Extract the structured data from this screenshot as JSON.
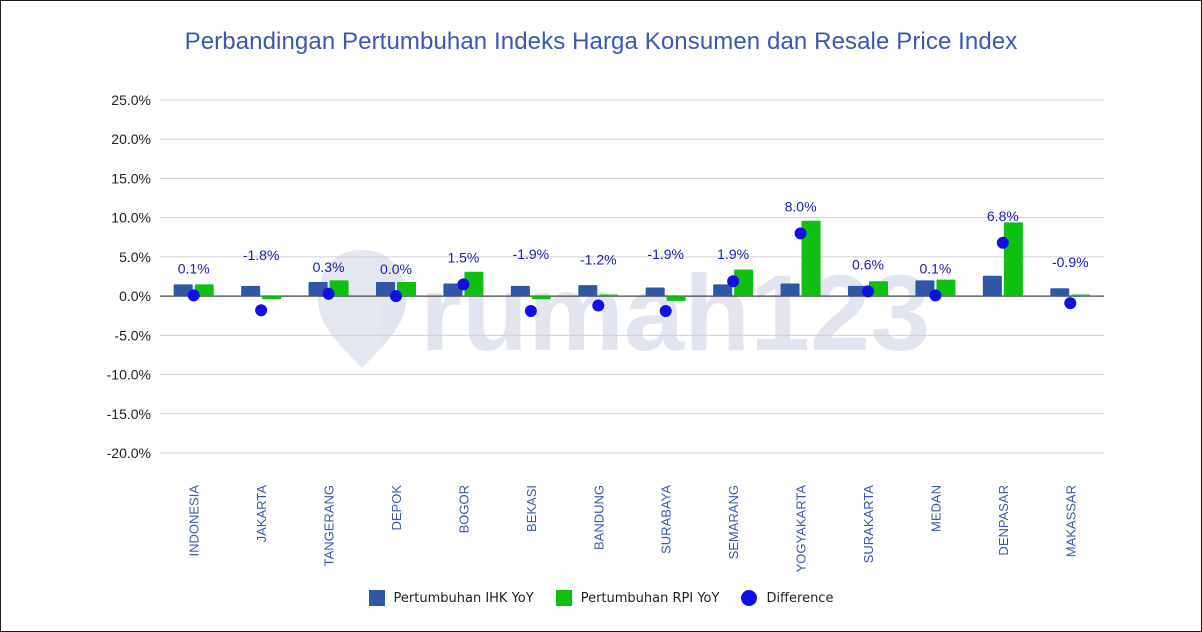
{
  "chart_data": {
    "type": "bar",
    "title": "Perbandingan Pertumbuhan Indeks Harga Konsumen dan Resale Price Index",
    "categories": [
      "INDONESIA",
      "JAKARTA",
      "TANGERANG",
      "DEPOK",
      "BOGOR",
      "BEKASI",
      "BANDUNG",
      "SURABAYA",
      "SEMARANG",
      "YOGYAKARTA",
      "SURAKARTA",
      "MEDAN",
      "DENPASAR",
      "MAKASSAR"
    ],
    "series": [
      {
        "name": "Pertumbuhan IHK YoY",
        "kind": "bar",
        "color": "#3056a8",
        "values": [
          1.5,
          1.3,
          1.8,
          1.8,
          1.6,
          1.3,
          1.4,
          1.1,
          1.5,
          1.6,
          1.3,
          2.0,
          2.6,
          1.0
        ]
      },
      {
        "name": "Pertumbuhan RPI YoY",
        "kind": "bar",
        "color": "#10c010",
        "values": [
          1.5,
          -0.4,
          2.0,
          1.8,
          3.1,
          -0.4,
          0.2,
          -0.6,
          3.4,
          9.6,
          1.9,
          2.1,
          9.4,
          0.2
        ]
      },
      {
        "name": "Difference",
        "kind": "scatter",
        "color": "#1010e6",
        "values": [
          0.1,
          -1.8,
          0.3,
          0.0,
          1.5,
          -1.9,
          -1.2,
          -1.9,
          1.9,
          8.0,
          0.6,
          0.1,
          6.8,
          -0.9
        ],
        "labels": [
          "0.1%",
          "-1.8%",
          "0.3%",
          "0.0%",
          "1.5%",
          "-1.9%",
          "-1.2%",
          "-1.9%",
          "1.9%",
          "8.0%",
          "0.6%",
          "0.1%",
          "6.8%",
          "-0.9%"
        ]
      }
    ],
    "yticks": [
      25,
      20,
      15,
      10,
      5,
      0,
      -5,
      -10,
      -15,
      -20
    ],
    "ytick_labels": [
      "25.0%",
      "20.0%",
      "15.0%",
      "10.0%",
      "5.0%",
      "0.0%",
      "-5.0%",
      "-10.0%",
      "-15.0%",
      "-20.0%"
    ],
    "ylim": [
      -20,
      25
    ],
    "grid": true,
    "legend_position": "bottom",
    "watermark": "rumah123"
  }
}
